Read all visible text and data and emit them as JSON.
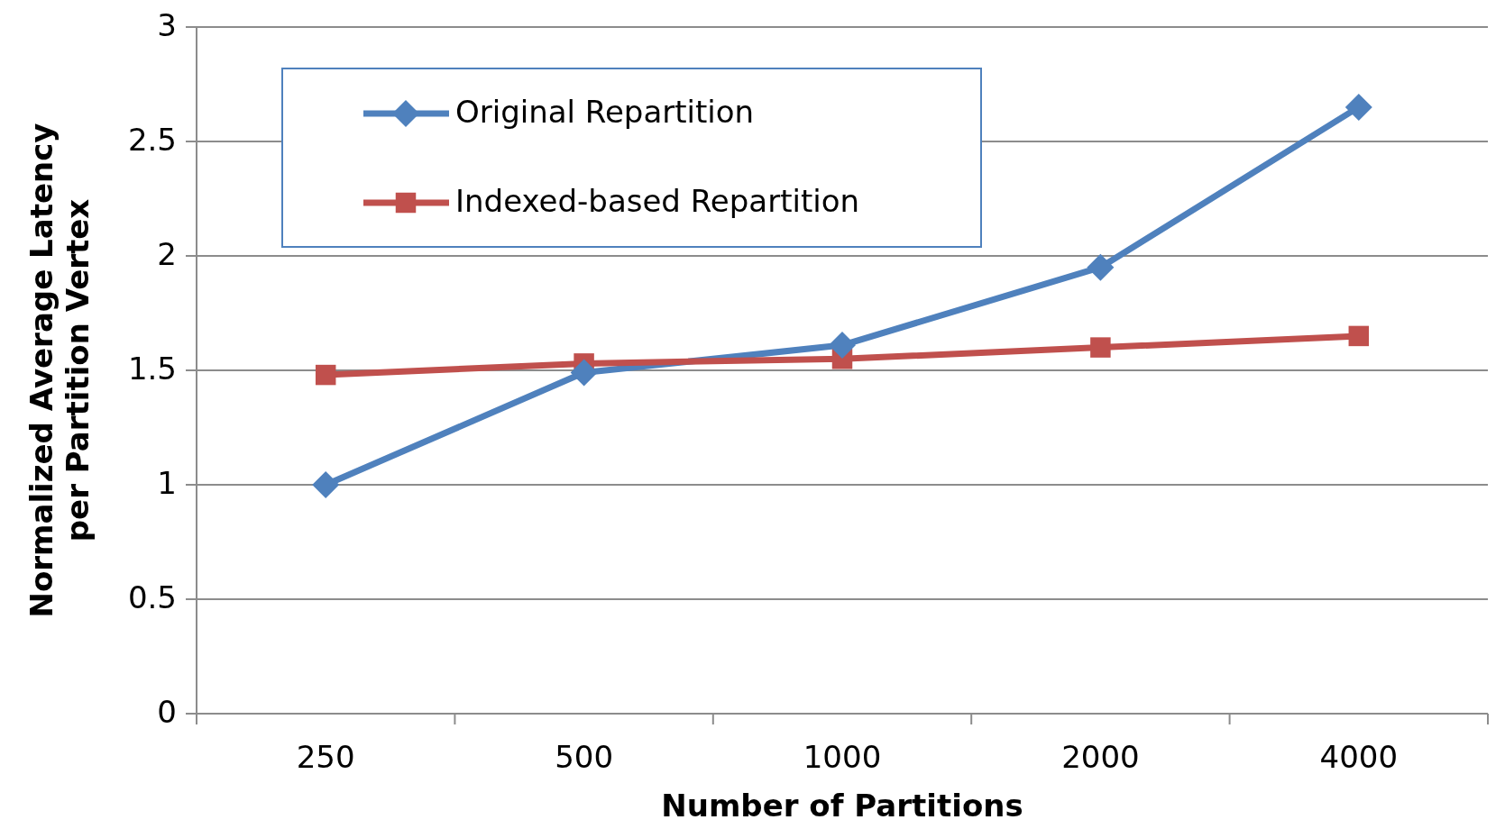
{
  "chart_data": {
    "type": "line",
    "xlabel": "Number of Partitions",
    "ylabel": "Normalized Average Latency\nper Partition Vertex",
    "categories": [
      "250",
      "500",
      "1000",
      "2000",
      "4000"
    ],
    "series": [
      {
        "name": "Original Repartition",
        "color": "#4f81bd",
        "values": [
          1.0,
          1.49,
          1.61,
          1.95,
          2.65
        ],
        "marker": "diamond"
      },
      {
        "name": "Indexed-based Repartition",
        "color": "#c0504d",
        "values": [
          1.48,
          1.53,
          1.55,
          1.6,
          1.65
        ],
        "marker": "square"
      }
    ],
    "ylim": [
      0,
      3
    ],
    "yticks": [
      0,
      0.5,
      1,
      1.5,
      2,
      2.5,
      3
    ],
    "grid": "y",
    "legend": "top left",
    "line_style": "solid"
  }
}
